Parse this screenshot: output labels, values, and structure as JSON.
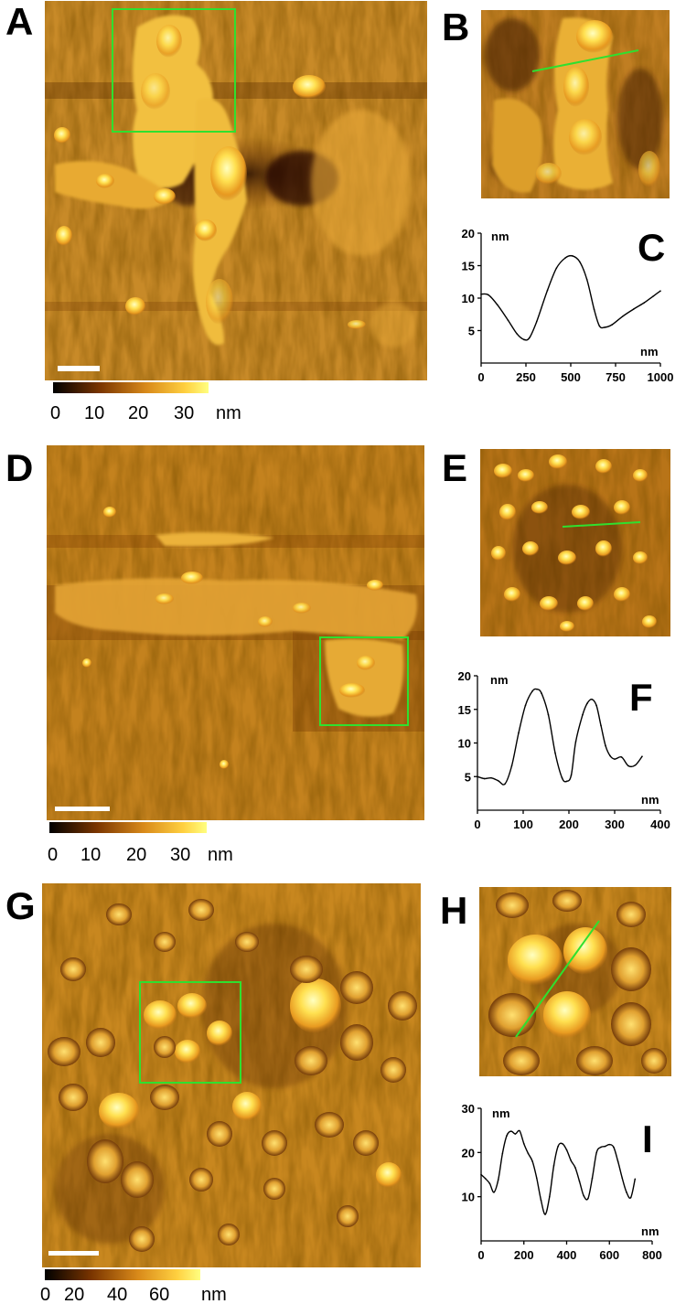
{
  "figure": {
    "panel_labels": [
      "A",
      "B",
      "C",
      "D",
      "E",
      "F",
      "G",
      "H",
      "I"
    ],
    "colorbars": [
      {
        "ticks": [
          "0",
          "10",
          "20",
          "30"
        ],
        "unit": "nm"
      },
      {
        "ticks": [
          "0",
          "10",
          "20",
          "30"
        ],
        "unit": "nm"
      },
      {
        "ticks": [
          "0",
          "20",
          "40",
          "60"
        ],
        "unit": "nm"
      }
    ],
    "colors": {
      "selection": "#2fe02f",
      "scalebar": "#ffffff",
      "afm_low": "#1a0800",
      "afm_mid": "#c87a1e",
      "afm_high": "#ffff70"
    }
  },
  "chart_data": [
    {
      "type": "line",
      "panel": "C",
      "xlabel": "nm",
      "ylabel": "nm",
      "xlim": [
        0,
        1000
      ],
      "ylim": [
        0,
        20
      ],
      "xticks": [
        "0",
        "250",
        "500",
        "750",
        "1000"
      ],
      "yticks": [
        "5",
        "10",
        "15",
        "20"
      ],
      "x": [
        0,
        40,
        90,
        150,
        200,
        240,
        270,
        310,
        370,
        420,
        470,
        510,
        550,
        590,
        630,
        660,
        690,
        730,
        790,
        850,
        910,
        960,
        1000
      ],
      "y": [
        10.6,
        10.5,
        9.0,
        6.6,
        4.5,
        3.6,
        3.9,
        6.4,
        11.2,
        14.6,
        16.2,
        16.5,
        15.6,
        12.9,
        8.3,
        5.7,
        5.5,
        5.9,
        7.2,
        8.3,
        9.3,
        10.3,
        11.1
      ]
    },
    {
      "type": "line",
      "panel": "F",
      "xlabel": "nm",
      "ylabel": "nm",
      "xlim": [
        0,
        400
      ],
      "ylim": [
        0,
        20
      ],
      "xticks": [
        "0",
        "100",
        "200",
        "300",
        "400"
      ],
      "yticks": [
        "5",
        "10",
        "15",
        "20"
      ],
      "x": [
        0,
        15,
        30,
        45,
        60,
        75,
        90,
        105,
        120,
        130,
        140,
        155,
        170,
        185,
        195,
        205,
        215,
        230,
        240,
        250,
        260,
        270,
        280,
        290,
        300,
        315,
        330,
        345,
        360
      ],
      "y": [
        5.0,
        4.7,
        4.8,
        4.4,
        3.9,
        6.6,
        11.5,
        15.6,
        17.7,
        18.0,
        17.4,
        14.2,
        8.5,
        4.8,
        4.3,
        5.2,
        10.2,
        14.2,
        15.9,
        16.5,
        15.6,
        12.6,
        9.6,
        8.1,
        7.6,
        7.9,
        6.6,
        6.7,
        8.0
      ]
    },
    {
      "type": "line",
      "panel": "I",
      "xlabel": "nm",
      "ylabel": "nm",
      "xlim": [
        0,
        800
      ],
      "ylim": [
        0,
        30
      ],
      "xticks": [
        "0",
        "200",
        "400",
        "600",
        "800"
      ],
      "yticks": [
        "10",
        "20",
        "30"
      ],
      "x": [
        0,
        20,
        40,
        60,
        80,
        100,
        120,
        140,
        160,
        180,
        200,
        220,
        240,
        260,
        280,
        300,
        320,
        340,
        360,
        380,
        400,
        420,
        440,
        460,
        480,
        500,
        520,
        540,
        560,
        580,
        600,
        620,
        640,
        660,
        680,
        700,
        720
      ],
      "y": [
        15.0,
        14.1,
        13.0,
        11.0,
        13.8,
        19.8,
        23.8,
        24.8,
        24.2,
        24.9,
        22.0,
        19.8,
        18.0,
        14.2,
        9.2,
        6.0,
        10.0,
        17.0,
        21.4,
        22.0,
        20.6,
        18.2,
        16.6,
        13.5,
        10.2,
        9.6,
        14.2,
        20.0,
        21.2,
        21.4,
        21.8,
        21.2,
        18.0,
        14.2,
        11.0,
        9.8,
        14.0
      ]
    }
  ]
}
